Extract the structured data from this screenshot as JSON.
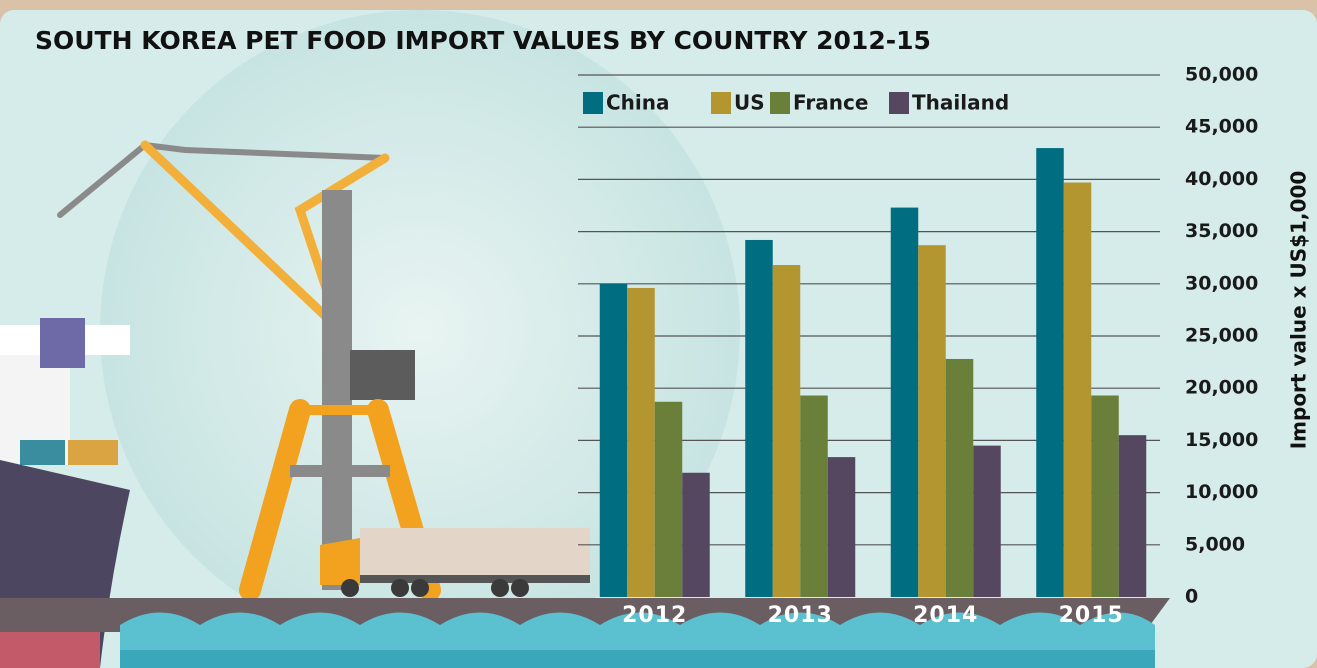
{
  "chart_data": {
    "type": "bar",
    "title": "SOUTH KOREA PET FOOD IMPORT VALUES BY COUNTRY 2012-15",
    "y_axis_label": "Import value x US$1,000",
    "categories": [
      "2012",
      "2013",
      "2014",
      "2015"
    ],
    "series": [
      {
        "name": "China",
        "color": "#006d80",
        "values": [
          30000,
          34200,
          37300,
          43000
        ]
      },
      {
        "name": "US",
        "color": "#b3962f",
        "values": [
          29600,
          31800,
          33700,
          39700
        ]
      },
      {
        "name": "France",
        "color": "#6a7f3a",
        "values": [
          18700,
          19300,
          22800,
          19300
        ]
      },
      {
        "name": "Thailand",
        "color": "#564761",
        "values": [
          11900,
          13400,
          14500,
          15500
        ]
      }
    ],
    "ylim": [
      0,
      50000
    ],
    "yticks": [
      0,
      {
        "value": 5000,
        "label": "5,000"
      },
      {
        "value": 10000,
        "label": "10,000"
      },
      {
        "value": 15000,
        "label": "15,000"
      },
      {
        "value": 20000,
        "label": "20,000"
      },
      {
        "value": 25000,
        "label": "25,000"
      },
      {
        "value": 30000,
        "label": "30,000"
      },
      {
        "value": 35000,
        "label": "35,000"
      },
      {
        "value": 40000,
        "label": "40,000"
      },
      {
        "value": 45000,
        "label": "45,000"
      },
      {
        "value": 50000,
        "label": "50,000"
      }
    ],
    "grid": true
  }
}
